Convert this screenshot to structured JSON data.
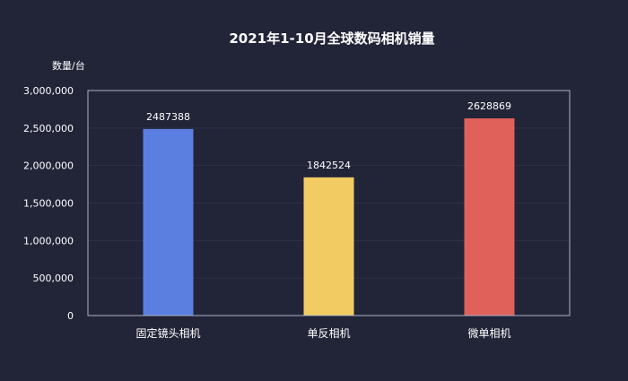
{
  "chart_data": {
    "type": "bar",
    "title": "2021年1-10月全球数码相机销量",
    "ylabel": "数量/台",
    "xlabel": "",
    "categories": [
      "固定镜头相机",
      "单反相机",
      "微单相机"
    ],
    "values": [
      2487388,
      1842524,
      2628869
    ],
    "data_labels": [
      "2487388",
      "1842524",
      "2628869"
    ],
    "ylim": [
      0,
      3000000
    ],
    "yticks": [
      0,
      500000,
      1000000,
      1500000,
      2000000,
      2500000,
      3000000
    ],
    "ytick_labels": [
      "0",
      "500,000",
      "1,000,000",
      "1,500,000",
      "2,000,000",
      "2,500,000",
      "3,000,000"
    ],
    "colors": [
      "#5b7fe0",
      "#f2cc63",
      "#e0615a"
    ],
    "background": "#222438",
    "grid": true,
    "legend": "none"
  }
}
